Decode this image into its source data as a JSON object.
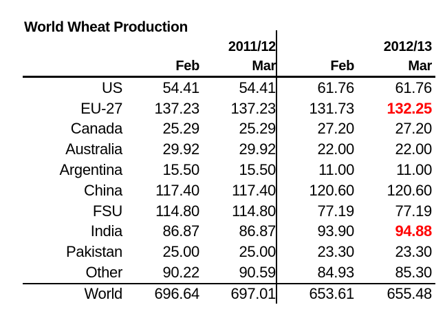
{
  "title": "World Wheat Production",
  "colors": {
    "text": "#000000",
    "highlight_red": "#FF0000",
    "background": "#FFFFFF",
    "rule_lines": "#000000"
  },
  "table": {
    "group_headers": [
      "2011/12",
      "2012/13"
    ],
    "col_headers": [
      "Feb",
      "Mar",
      "Feb",
      "Mar"
    ],
    "rows": [
      {
        "label": "US",
        "values": [
          "54.41",
          "54.41",
          "61.76",
          "61.76"
        ],
        "red": [
          false,
          false,
          false,
          false
        ]
      },
      {
        "label": "EU-27",
        "values": [
          "137.23",
          "137.23",
          "131.73",
          "132.25"
        ],
        "red": [
          false,
          false,
          false,
          true
        ]
      },
      {
        "label": "Canada",
        "values": [
          "25.29",
          "25.29",
          "27.20",
          "27.20"
        ],
        "red": [
          false,
          false,
          false,
          false
        ]
      },
      {
        "label": "Australia",
        "values": [
          "29.92",
          "29.92",
          "22.00",
          "22.00"
        ],
        "red": [
          false,
          false,
          false,
          false
        ]
      },
      {
        "label": "Argentina",
        "values": [
          "15.50",
          "15.50",
          "11.00",
          "11.00"
        ],
        "red": [
          false,
          false,
          false,
          false
        ]
      },
      {
        "label": "China",
        "values": [
          "117.40",
          "117.40",
          "120.60",
          "120.60"
        ],
        "red": [
          false,
          false,
          false,
          false
        ]
      },
      {
        "label": "FSU",
        "values": [
          "114.80",
          "114.80",
          "77.19",
          "77.19"
        ],
        "red": [
          false,
          false,
          false,
          false
        ]
      },
      {
        "label": "India",
        "values": [
          "86.87",
          "86.87",
          "93.90",
          "94.88"
        ],
        "red": [
          false,
          false,
          false,
          true
        ]
      },
      {
        "label": "Pakistan",
        "values": [
          "25.00",
          "25.00",
          "23.30",
          "23.30"
        ],
        "red": [
          false,
          false,
          false,
          false
        ]
      },
      {
        "label": "Other",
        "values": [
          "90.22",
          "90.59",
          "84.93",
          "85.30"
        ],
        "red": [
          false,
          false,
          false,
          false
        ]
      }
    ],
    "total_row": {
      "label": "World",
      "values": [
        "696.64",
        "697.01",
        "653.61",
        "655.48"
      ],
      "red": [
        false,
        false,
        false,
        false
      ]
    }
  },
  "chart_data": {
    "type": "table",
    "title": "World Wheat Production",
    "column_groups": [
      "2011/12",
      "2012/13"
    ],
    "columns": [
      "2011/12 Feb",
      "2011/12 Mar",
      "2012/13 Feb",
      "2012/13 Mar"
    ],
    "rows": [
      {
        "label": "US",
        "values": [
          54.41,
          54.41,
          61.76,
          61.76
        ]
      },
      {
        "label": "EU-27",
        "values": [
          137.23,
          137.23,
          131.73,
          132.25
        ]
      },
      {
        "label": "Canada",
        "values": [
          25.29,
          25.29,
          27.2,
          27.2
        ]
      },
      {
        "label": "Australia",
        "values": [
          29.92,
          29.92,
          22.0,
          22.0
        ]
      },
      {
        "label": "Argentina",
        "values": [
          15.5,
          15.5,
          11.0,
          11.0
        ]
      },
      {
        "label": "China",
        "values": [
          117.4,
          117.4,
          120.6,
          120.6
        ]
      },
      {
        "label": "FSU",
        "values": [
          114.8,
          114.8,
          77.19,
          77.19
        ]
      },
      {
        "label": "India",
        "values": [
          86.87,
          86.87,
          93.9,
          94.88
        ]
      },
      {
        "label": "Pakistan",
        "values": [
          25.0,
          25.0,
          23.3,
          23.3
        ]
      },
      {
        "label": "Other",
        "values": [
          90.22,
          90.59,
          84.93,
          85.3
        ]
      },
      {
        "label": "World",
        "values": [
          696.64,
          697.01,
          653.61,
          655.48
        ]
      }
    ],
    "highlighted_cells": [
      {
        "row": "EU-27",
        "column": "2012/13 Mar",
        "value": 132.25,
        "color": "#FF0000"
      },
      {
        "row": "India",
        "column": "2012/13 Mar",
        "value": 94.88,
        "color": "#FF0000"
      }
    ]
  }
}
